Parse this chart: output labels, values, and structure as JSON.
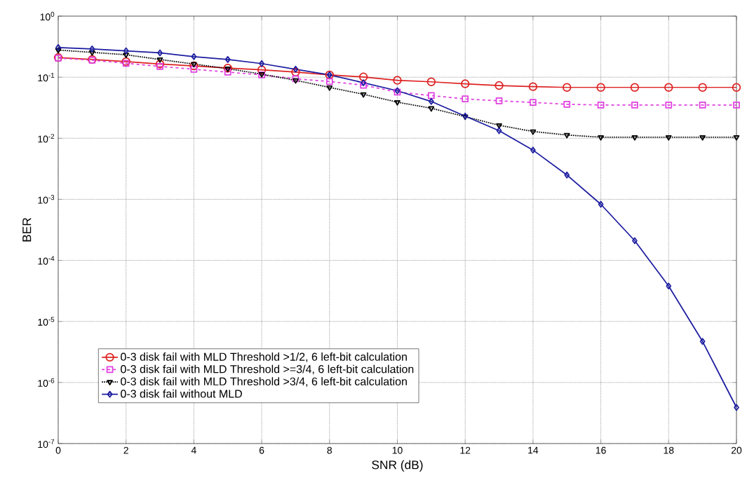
{
  "chart_data": {
    "type": "line",
    "xlabel": "SNR (dB)",
    "ylabel": "BER",
    "log": "y",
    "grid": true,
    "legend": "bottom left",
    "x": [
      0,
      1,
      2,
      3,
      4,
      5,
      6,
      7,
      8,
      9,
      10,
      11,
      12,
      13,
      14,
      15,
      16,
      17,
      18,
      19,
      20
    ],
    "xlim": [
      0,
      20
    ],
    "xticks": [
      0,
      2,
      4,
      6,
      8,
      10,
      12,
      14,
      16,
      18,
      20
    ],
    "ylim": [
      1e-07,
      1
    ],
    "yticks": [
      {
        "value": 1e-07,
        "label": "10$^{-7}$"
      },
      {
        "value": 1e-06,
        "label": "10$^{-6}$"
      },
      {
        "value": 1e-05,
        "label": "10$^{-5}$"
      },
      {
        "value": 0.0001,
        "label": "10$^{-4}$"
      },
      {
        "value": 0.001,
        "label": "10$^{-3}$"
      },
      {
        "value": 0.01,
        "label": "10$^{-2}$"
      },
      {
        "value": 0.1,
        "label": "10$^{-1}$"
      },
      {
        "value": 1,
        "label": "10$^{0}$"
      }
    ],
    "series": [
      {
        "name": "0-3 disk fail with MLD Threshold >1/2, 6 left-bit calculation",
        "color": "#dd2222",
        "marker": "circle",
        "line_style": "solid",
        "values": [
          0.21,
          0.195,
          0.18,
          0.164,
          0.153,
          0.141,
          0.132,
          0.121,
          0.109,
          0.101,
          0.089,
          0.084,
          0.078,
          0.073,
          0.07,
          0.068,
          0.068,
          0.068,
          0.068,
          0.068,
          0.068
        ]
      },
      {
        "name": "0-3 disk fail with MLD Threshold >=3/4, 6 left-bit calculation",
        "color": "#e040e0",
        "marker": "square",
        "line_style": "dashed",
        "values": [
          0.205,
          0.19,
          0.169,
          0.15,
          0.135,
          0.121,
          0.109,
          0.094,
          0.085,
          0.074,
          0.057,
          0.05,
          0.044,
          0.041,
          0.0386,
          0.036,
          0.035,
          0.035,
          0.035,
          0.035,
          0.035
        ]
      },
      {
        "name": "0-3 disk fail with MLD Threshold >3/4, 6 left-bit calculation",
        "color": "#000000",
        "marker": "triangle",
        "line_style": "dotted",
        "values": [
          0.278,
          0.255,
          0.233,
          0.195,
          0.164,
          0.138,
          0.112,
          0.089,
          0.068,
          0.0525,
          0.039,
          0.031,
          0.0226,
          0.0163,
          0.0129,
          0.0113,
          0.0104,
          0.0104,
          0.0104,
          0.0104,
          0.0104
        ]
      },
      {
        "name": "0-3 disk fail without MLD",
        "color": "#1c1ca0",
        "marker": "diamond",
        "line_style": "solid",
        "values": [
          0.306,
          0.29,
          0.27,
          0.25,
          0.217,
          0.195,
          0.167,
          0.135,
          0.109,
          0.081,
          0.06,
          0.04,
          0.023,
          0.0133,
          0.0064,
          0.0025,
          0.00083,
          0.00021,
          3.8e-05,
          4.7e-06,
          3.9e-07
        ]
      }
    ]
  }
}
